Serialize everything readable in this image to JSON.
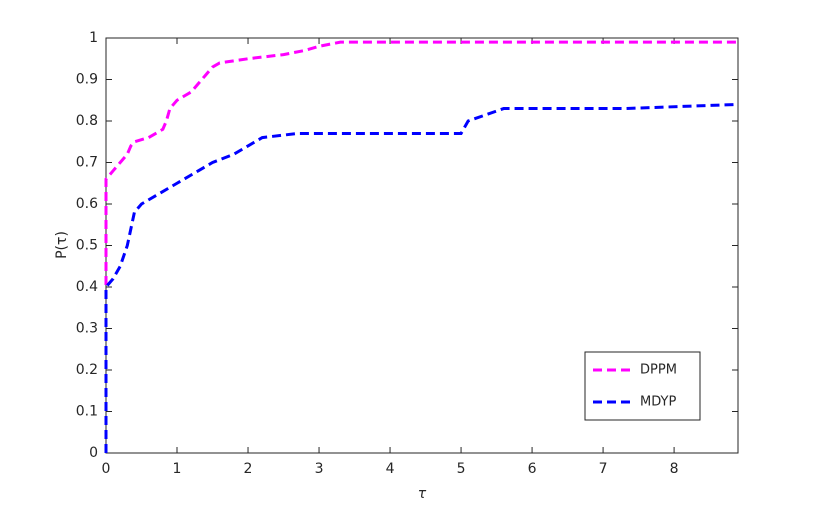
{
  "chart_data": {
    "type": "line",
    "xlabel": "τ",
    "ylabel": "P(τ)",
    "xlim": [
      0,
      8.9
    ],
    "ylim": [
      0,
      1
    ],
    "xticks": [
      0,
      1,
      2,
      3,
      4,
      5,
      6,
      7,
      8
    ],
    "yticks": [
      0,
      0.1,
      0.2,
      0.3,
      0.4,
      0.5,
      0.6,
      0.7,
      0.8,
      0.9,
      1
    ],
    "legend": "lower right",
    "series": [
      {
        "name": "DPPM",
        "color": "#ff00ff",
        "x": [
          0,
          0,
          0.05,
          0.1,
          0.2,
          0.3,
          0.35,
          0.4,
          0.6,
          0.8,
          0.85,
          0.9,
          1.0,
          1.2,
          1.3,
          1.4,
          1.5,
          1.6,
          2.0,
          2.5,
          2.8,
          3.0,
          3.3,
          8.9
        ],
        "values": [
          0,
          0.66,
          0.67,
          0.68,
          0.7,
          0.72,
          0.74,
          0.75,
          0.76,
          0.78,
          0.8,
          0.83,
          0.85,
          0.87,
          0.89,
          0.91,
          0.93,
          0.94,
          0.95,
          0.96,
          0.97,
          0.98,
          0.99,
          0.99
        ]
      },
      {
        "name": "MDYP",
        "color": "#0000ff",
        "x": [
          0,
          0,
          0.1,
          0.2,
          0.3,
          0.4,
          0.5,
          0.8,
          1.0,
          1.3,
          1.5,
          1.8,
          2.0,
          2.2,
          2.7,
          5.0,
          5.1,
          5.6,
          7.3,
          8.9
        ],
        "values": [
          0,
          0.4,
          0.42,
          0.45,
          0.5,
          0.58,
          0.6,
          0.63,
          0.65,
          0.68,
          0.7,
          0.72,
          0.74,
          0.76,
          0.77,
          0.77,
          0.8,
          0.83,
          0.83,
          0.84
        ]
      }
    ]
  }
}
